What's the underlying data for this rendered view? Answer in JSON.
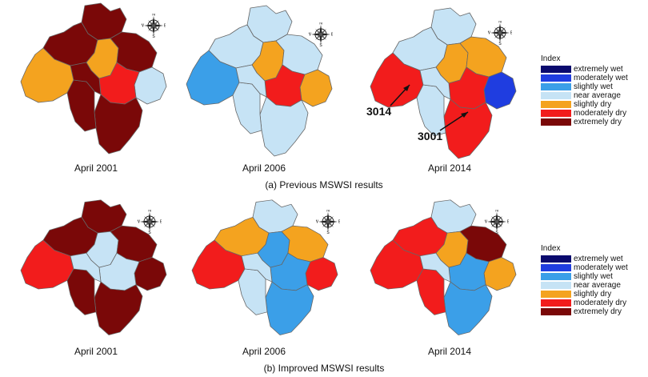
{
  "colors": {
    "extremely_wet": "#0a0a6e",
    "moderately_wet": "#1f3de0",
    "slightly_wet": "#3b9fe8",
    "near_average": "#c6e3f5",
    "slightly_dry": "#f4a31f",
    "moderately_dry": "#f21c1c",
    "extremely_dry": "#7a0808",
    "outline": "#666666"
  },
  "legend": {
    "title": "Index",
    "items": [
      {
        "label": "extremely wet",
        "class": "extremely_wet"
      },
      {
        "label": "moderately wet",
        "class": "moderately_wet"
      },
      {
        "label": "slightly wet",
        "class": "slightly_wet"
      },
      {
        "label": "near average",
        "class": "near_average"
      },
      {
        "label": "slightly dry",
        "class": "slightly_dry"
      },
      {
        "label": "moderately dry",
        "class": "moderately_dry"
      },
      {
        "label": "extremely dry",
        "class": "extremely_dry"
      }
    ]
  },
  "compass": {
    "n": "N",
    "s": "S",
    "e": "E",
    "w": "W"
  },
  "panels": {
    "previous": {
      "caption": "(a) Previous MSWSI results",
      "maps": [
        {
          "label": "April 2001",
          "regions": {
            "n": "extremely_dry",
            "nw": "extremely_dry",
            "w": "slightly_dry",
            "c": "slightly_dry",
            "ne": "extremely_dry",
            "e": "near_average",
            "cs": "moderately_dry",
            "s": "extremely_dry",
            "sw": "extremely_dry",
            "core": "extremely_dry"
          }
        },
        {
          "label": "April 2006",
          "regions": {
            "n": "near_average",
            "nw": "near_average",
            "w": "slightly_wet",
            "c": "slightly_dry",
            "ne": "near_average",
            "e": "slightly_dry",
            "cs": "moderately_dry",
            "s": "near_average",
            "sw": "near_average",
            "core": "near_average"
          }
        },
        {
          "label": "April 2014",
          "regions": {
            "n": "near_average",
            "nw": "near_average",
            "w": "moderately_dry",
            "c": "slightly_dry",
            "ne": "slightly_dry",
            "e": "moderately_wet",
            "cs": "moderately_dry",
            "s": "moderately_dry",
            "sw": "near_average",
            "core": "near_average"
          },
          "callouts": [
            "3014",
            "3001"
          ]
        }
      ]
    },
    "improved": {
      "caption": "(b) Improved MSWSI results",
      "maps": [
        {
          "label": "April 2001",
          "regions": {
            "n": "extremely_dry",
            "nw": "extremely_dry",
            "w": "moderately_dry",
            "c": "near_average",
            "ne": "extremely_dry",
            "e": "extremely_dry",
            "cs": "near_average",
            "s": "extremely_dry",
            "sw": "extremely_dry",
            "core": "near_average"
          }
        },
        {
          "label": "April 2006",
          "regions": {
            "n": "near_average",
            "nw": "slightly_dry",
            "w": "moderately_dry",
            "c": "slightly_wet",
            "ne": "slightly_dry",
            "e": "moderately_dry",
            "cs": "slightly_wet",
            "s": "slightly_wet",
            "sw": "near_average",
            "core": "near_average"
          }
        },
        {
          "label": "April 2014",
          "regions": {
            "n": "near_average",
            "nw": "moderately_dry",
            "w": "moderately_dry",
            "c": "slightly_dry",
            "ne": "extremely_dry",
            "e": "slightly_dry",
            "cs": "slightly_wet",
            "s": "slightly_wet",
            "sw": "moderately_dry",
            "core": "near_average"
          }
        }
      ]
    }
  }
}
